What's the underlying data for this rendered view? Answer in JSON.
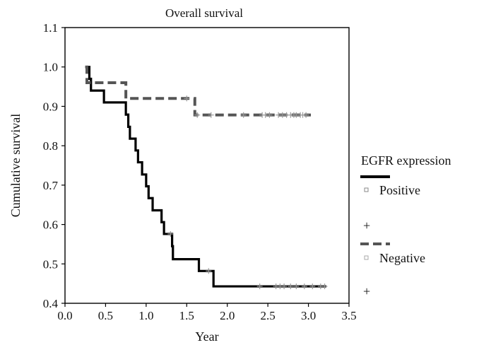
{
  "chart_data": {
    "type": "line",
    "title": "Overall survival",
    "xlabel": "Year",
    "ylabel": "Cumulative survival",
    "xlim": [
      0.0,
      3.5
    ],
    "ylim": [
      0.4,
      1.1
    ],
    "x_ticks": [
      "0.0",
      "0.5",
      "1.0",
      "1.5",
      "2.0",
      "2.5",
      "3.0",
      "3.5"
    ],
    "y_ticks": [
      "0.4",
      "0.5",
      "0.6",
      "0.7",
      "0.8",
      "0.9",
      "1.0",
      "1.1"
    ],
    "grid": false,
    "legend": {
      "title": "EGFR expression",
      "placement": "right",
      "entries": [
        {
          "label": "Positive",
          "censor_label": "+"
        },
        {
          "label": "Negative",
          "censor_label": "+"
        }
      ]
    },
    "series": [
      {
        "name": "Positive",
        "color": "#000000",
        "style": "solid-step",
        "steps": [
          [
            0.25,
            1.0
          ],
          [
            0.3,
            0.97
          ],
          [
            0.32,
            0.94
          ],
          [
            0.48,
            0.91
          ],
          [
            0.75,
            0.879
          ],
          [
            0.78,
            0.848
          ],
          [
            0.8,
            0.818
          ],
          [
            0.87,
            0.788
          ],
          [
            0.9,
            0.758
          ],
          [
            0.95,
            0.727
          ],
          [
            1.0,
            0.697
          ],
          [
            1.03,
            0.667
          ],
          [
            1.08,
            0.636
          ],
          [
            1.19,
            0.606
          ],
          [
            1.22,
            0.576
          ],
          [
            1.32,
            0.545
          ],
          [
            1.33,
            0.512
          ],
          [
            1.65,
            0.482
          ],
          [
            1.83,
            0.443
          ],
          [
            3.22,
            0.443
          ]
        ],
        "censored_x": [
          1.3,
          1.77,
          2.4,
          2.6,
          2.65,
          2.7,
          2.78,
          2.85,
          2.95,
          3.05,
          3.15,
          3.2
        ]
      },
      {
        "name": "Negative",
        "color": "#555555",
        "style": "dashed-step",
        "steps": [
          [
            0.25,
            1.0
          ],
          [
            0.27,
            0.96
          ],
          [
            0.75,
            0.92
          ],
          [
            1.6,
            0.878
          ],
          [
            3.03,
            0.878
          ]
        ],
        "censored_x": [
          1.5,
          1.63,
          1.8,
          2.2,
          2.43,
          2.47,
          2.52,
          2.63,
          2.68,
          2.73,
          2.78,
          2.82,
          2.85,
          2.9,
          2.93,
          2.97
        ]
      }
    ]
  }
}
